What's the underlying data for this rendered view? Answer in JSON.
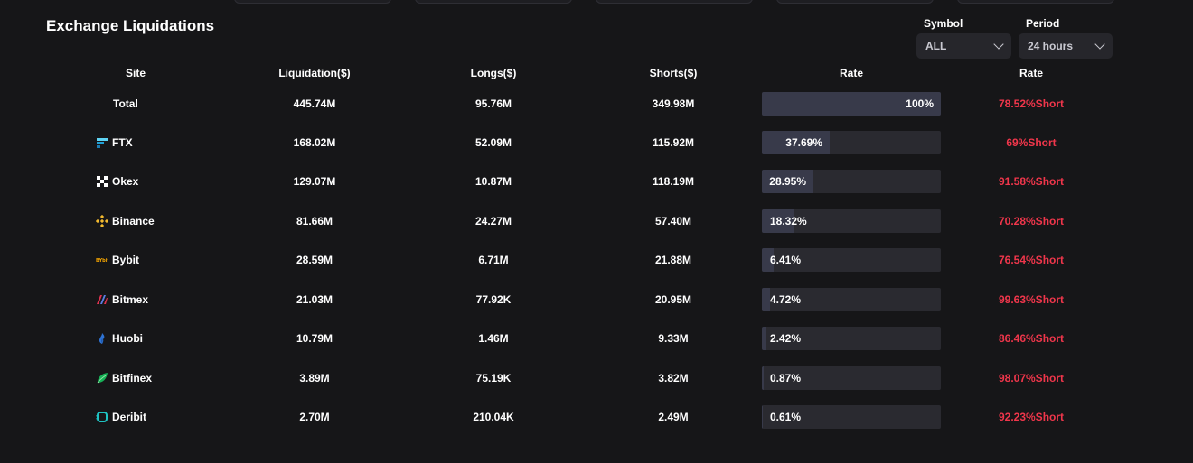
{
  "title": "Exchange Liquidations",
  "filters": {
    "symbol_label": "Symbol",
    "symbol_value": "ALL",
    "period_label": "Period",
    "period_value": "24 hours"
  },
  "columns": [
    "Site",
    "Liquidation($)",
    "Longs($)",
    "Shorts($)",
    "Rate",
    "Rate"
  ],
  "colors": {
    "background": "#161618",
    "short": "#f0364b",
    "bar_track": "#2a2a30",
    "bar_fill": "#383a4a"
  },
  "rows": [
    {
      "site": "Total",
      "icon": "",
      "liquidation": "445.74M",
      "longs": "95.76M",
      "shorts": "349.98M",
      "rate": "100%",
      "rate_value": 100,
      "side_rate": "78.52%Short"
    },
    {
      "site": "FTX",
      "icon": "ftx-logo-icon",
      "liquidation": "168.02M",
      "longs": "52.09M",
      "shorts": "115.92M",
      "rate": "37.69%",
      "rate_value": 37.69,
      "side_rate": "69%Short"
    },
    {
      "site": "Okex",
      "icon": "okex-logo-icon",
      "liquidation": "129.07M",
      "longs": "10.87M",
      "shorts": "118.19M",
      "rate": "28.95%",
      "rate_value": 28.95,
      "side_rate": "91.58%Short"
    },
    {
      "site": "Binance",
      "icon": "binance-logo-icon",
      "liquidation": "81.66M",
      "longs": "24.27M",
      "shorts": "57.40M",
      "rate": "18.32%",
      "rate_value": 18.32,
      "side_rate": "70.28%Short"
    },
    {
      "site": "Bybit",
      "icon": "bybit-logo-icon",
      "liquidation": "28.59M",
      "longs": "6.71M",
      "shorts": "21.88M",
      "rate": "6.41%",
      "rate_value": 6.41,
      "side_rate": "76.54%Short"
    },
    {
      "site": "Bitmex",
      "icon": "bitmex-logo-icon",
      "liquidation": "21.03M",
      "longs": "77.92K",
      "shorts": "20.95M",
      "rate": "4.72%",
      "rate_value": 4.72,
      "side_rate": "99.63%Short"
    },
    {
      "site": "Huobi",
      "icon": "huobi-logo-icon",
      "liquidation": "10.79M",
      "longs": "1.46M",
      "shorts": "9.33M",
      "rate": "2.42%",
      "rate_value": 2.42,
      "side_rate": "86.46%Short"
    },
    {
      "site": "Bitfinex",
      "icon": "bitfinex-logo-icon",
      "liquidation": "3.89M",
      "longs": "75.19K",
      "shorts": "3.82M",
      "rate": "0.87%",
      "rate_value": 0.87,
      "side_rate": "98.07%Short"
    },
    {
      "site": "Deribit",
      "icon": "deribit-logo-icon",
      "liquidation": "2.70M",
      "longs": "210.04K",
      "shorts": "2.49M",
      "rate": "0.61%",
      "rate_value": 0.61,
      "side_rate": "92.23%Short"
    }
  ]
}
